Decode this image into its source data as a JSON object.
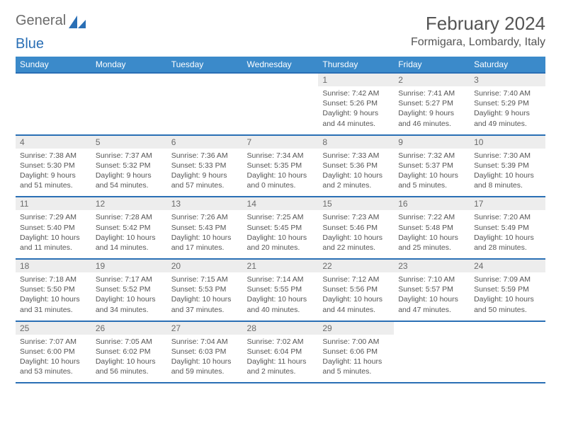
{
  "logo": {
    "text1": "General",
    "text2": "Blue",
    "shape_color": "#2a6fb5"
  },
  "title": "February 2024",
  "location": "Formigara, Lombardy, Italy",
  "header_bg": "#3b8aca",
  "divider_color": "#2a6fb5",
  "daynum_bg": "#ededed",
  "text_color": "#555555",
  "dow": [
    "Sunday",
    "Monday",
    "Tuesday",
    "Wednesday",
    "Thursday",
    "Friday",
    "Saturday"
  ],
  "weeks": [
    [
      null,
      null,
      null,
      null,
      {
        "n": "1",
        "sr": "7:42 AM",
        "ss": "5:26 PM",
        "dl": "9 hours and 44 minutes."
      },
      {
        "n": "2",
        "sr": "7:41 AM",
        "ss": "5:27 PM",
        "dl": "9 hours and 46 minutes."
      },
      {
        "n": "3",
        "sr": "7:40 AM",
        "ss": "5:29 PM",
        "dl": "9 hours and 49 minutes."
      }
    ],
    [
      {
        "n": "4",
        "sr": "7:38 AM",
        "ss": "5:30 PM",
        "dl": "9 hours and 51 minutes."
      },
      {
        "n": "5",
        "sr": "7:37 AM",
        "ss": "5:32 PM",
        "dl": "9 hours and 54 minutes."
      },
      {
        "n": "6",
        "sr": "7:36 AM",
        "ss": "5:33 PM",
        "dl": "9 hours and 57 minutes."
      },
      {
        "n": "7",
        "sr": "7:34 AM",
        "ss": "5:35 PM",
        "dl": "10 hours and 0 minutes."
      },
      {
        "n": "8",
        "sr": "7:33 AM",
        "ss": "5:36 PM",
        "dl": "10 hours and 2 minutes."
      },
      {
        "n": "9",
        "sr": "7:32 AM",
        "ss": "5:37 PM",
        "dl": "10 hours and 5 minutes."
      },
      {
        "n": "10",
        "sr": "7:30 AM",
        "ss": "5:39 PM",
        "dl": "10 hours and 8 minutes."
      }
    ],
    [
      {
        "n": "11",
        "sr": "7:29 AM",
        "ss": "5:40 PM",
        "dl": "10 hours and 11 minutes."
      },
      {
        "n": "12",
        "sr": "7:28 AM",
        "ss": "5:42 PM",
        "dl": "10 hours and 14 minutes."
      },
      {
        "n": "13",
        "sr": "7:26 AM",
        "ss": "5:43 PM",
        "dl": "10 hours and 17 minutes."
      },
      {
        "n": "14",
        "sr": "7:25 AM",
        "ss": "5:45 PM",
        "dl": "10 hours and 20 minutes."
      },
      {
        "n": "15",
        "sr": "7:23 AM",
        "ss": "5:46 PM",
        "dl": "10 hours and 22 minutes."
      },
      {
        "n": "16",
        "sr": "7:22 AM",
        "ss": "5:48 PM",
        "dl": "10 hours and 25 minutes."
      },
      {
        "n": "17",
        "sr": "7:20 AM",
        "ss": "5:49 PM",
        "dl": "10 hours and 28 minutes."
      }
    ],
    [
      {
        "n": "18",
        "sr": "7:18 AM",
        "ss": "5:50 PM",
        "dl": "10 hours and 31 minutes."
      },
      {
        "n": "19",
        "sr": "7:17 AM",
        "ss": "5:52 PM",
        "dl": "10 hours and 34 minutes."
      },
      {
        "n": "20",
        "sr": "7:15 AM",
        "ss": "5:53 PM",
        "dl": "10 hours and 37 minutes."
      },
      {
        "n": "21",
        "sr": "7:14 AM",
        "ss": "5:55 PM",
        "dl": "10 hours and 40 minutes."
      },
      {
        "n": "22",
        "sr": "7:12 AM",
        "ss": "5:56 PM",
        "dl": "10 hours and 44 minutes."
      },
      {
        "n": "23",
        "sr": "7:10 AM",
        "ss": "5:57 PM",
        "dl": "10 hours and 47 minutes."
      },
      {
        "n": "24",
        "sr": "7:09 AM",
        "ss": "5:59 PM",
        "dl": "10 hours and 50 minutes."
      }
    ],
    [
      {
        "n": "25",
        "sr": "7:07 AM",
        "ss": "6:00 PM",
        "dl": "10 hours and 53 minutes."
      },
      {
        "n": "26",
        "sr": "7:05 AM",
        "ss": "6:02 PM",
        "dl": "10 hours and 56 minutes."
      },
      {
        "n": "27",
        "sr": "7:04 AM",
        "ss": "6:03 PM",
        "dl": "10 hours and 59 minutes."
      },
      {
        "n": "28",
        "sr": "7:02 AM",
        "ss": "6:04 PM",
        "dl": "11 hours and 2 minutes."
      },
      {
        "n": "29",
        "sr": "7:00 AM",
        "ss": "6:06 PM",
        "dl": "11 hours and 5 minutes."
      },
      null,
      null
    ]
  ],
  "labels": {
    "sunrise": "Sunrise:",
    "sunset": "Sunset:",
    "daylight": "Daylight:"
  }
}
